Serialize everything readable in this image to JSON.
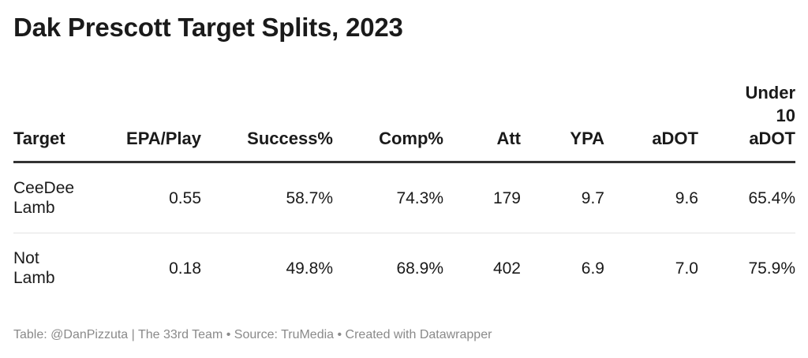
{
  "title": "Dak Prescott Target Splits, 2023",
  "footer": "Table: @DanPizzuta | The 33rd Team • Source: TruMedia • Created with Datawrapper",
  "chart_data": {
    "type": "table",
    "title": "Dak Prescott Target Splits, 2023",
    "columns": [
      {
        "key": "target",
        "label": "Target",
        "label_lines": [
          "Target"
        ]
      },
      {
        "key": "epa_play",
        "label": "EPA/Play",
        "label_lines": [
          "EPA/Play"
        ]
      },
      {
        "key": "success",
        "label": "Success%",
        "label_lines": [
          "Success%"
        ]
      },
      {
        "key": "comp",
        "label": "Comp%",
        "label_lines": [
          "Comp%"
        ]
      },
      {
        "key": "att",
        "label": "Att",
        "label_lines": [
          "Att"
        ]
      },
      {
        "key": "ypa",
        "label": "YPA",
        "label_lines": [
          "YPA"
        ]
      },
      {
        "key": "adot",
        "label": "aDOT",
        "label_lines": [
          "aDOT"
        ]
      },
      {
        "key": "under10",
        "label": "Under 10 aDOT",
        "label_lines": [
          "Under",
          "10",
          "aDOT"
        ]
      }
    ],
    "rows": [
      {
        "target": "CeeDee Lamb",
        "target_lines": [
          "CeeDee",
          "Lamb"
        ],
        "epa_play": "0.55",
        "success": "58.7%",
        "comp": "74.3%",
        "att": "179",
        "ypa": "9.7",
        "adot": "9.6",
        "under10": "65.4%"
      },
      {
        "target": "Not Lamb",
        "target_lines": [
          "Not",
          "Lamb"
        ],
        "epa_play": "0.18",
        "success": "49.8%",
        "comp": "68.9%",
        "att": "402",
        "ypa": "6.9",
        "adot": "7.0",
        "under10": "75.9%"
      }
    ]
  }
}
